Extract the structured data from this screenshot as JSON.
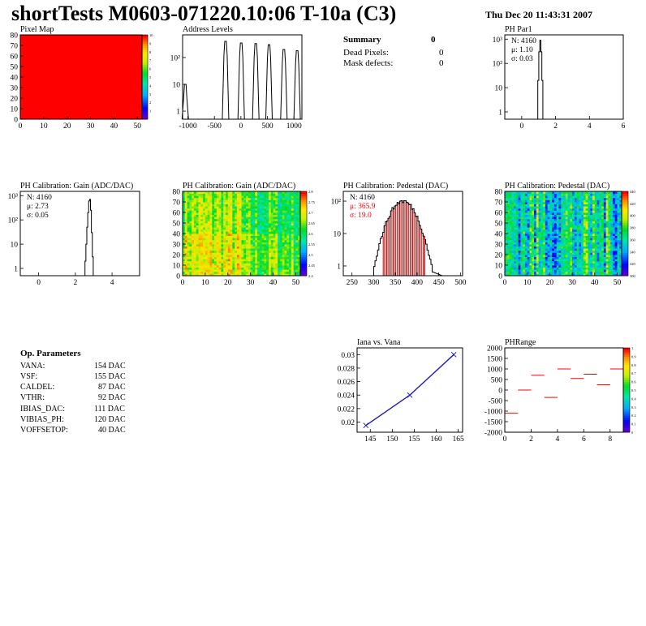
{
  "header": {
    "title": "shortTests M0603-071220.10:06 T-10a (C3)",
    "date": "Thu Dec 20 11:43:31 2007"
  },
  "summary": {
    "title": "Summary",
    "title_value": "0",
    "rows": [
      {
        "label": "Dead Pixels:",
        "value": "0"
      },
      {
        "label": "Mask defects:",
        "value": "0"
      }
    ]
  },
  "op_parameters": {
    "title": "Op. Parameters",
    "rows": [
      {
        "name": "VANA:",
        "value": "154 DAC"
      },
      {
        "name": "VSF:",
        "value": "155 DAC"
      },
      {
        "name": "CALDEL:",
        "value": "87 DAC"
      },
      {
        "name": "VTHR:",
        "value": "92 DAC"
      },
      {
        "name": "IBIAS_DAC:",
        "value": "111 DAC"
      },
      {
        "name": "VIBIAS_PH:",
        "value": "120 DAC"
      },
      {
        "name": "VOFFSETOP:",
        "value": "40 DAC"
      }
    ]
  },
  "colors": {
    "red": "#ff0000",
    "blue": "#2020b0",
    "pedestal_fill": "#a01010"
  },
  "chart_data": [
    {
      "id": "pixel-map",
      "type": "heatmap",
      "title": "Pixel Map",
      "xlim": [
        0,
        52
      ],
      "ylim": [
        0,
        80
      ],
      "xticks": [
        0,
        10,
        20,
        30,
        40,
        50
      ],
      "yticks": [
        0,
        10,
        20,
        30,
        40,
        50,
        60,
        70,
        80
      ],
      "fill_value": 10,
      "z_range": [
        0,
        10
      ],
      "colorbar_ticks": [
        "1",
        "2",
        "3",
        "4",
        "5",
        "6",
        "7",
        "8",
        "9",
        "10"
      ]
    },
    {
      "id": "address-levels",
      "type": "bar",
      "title": "Address Levels",
      "log_y": true,
      "xlim": [
        -1100,
        1150
      ],
      "ylim": [
        0.5,
        700
      ],
      "xticks": [
        -1000,
        -500,
        0,
        500,
        1000
      ],
      "yticks": [
        1,
        10,
        100
      ],
      "peaks": [
        {
          "x": -1050,
          "y": 10
        },
        {
          "x": -290,
          "y": 400
        },
        {
          "x": 5,
          "y": 350
        },
        {
          "x": 280,
          "y": 330
        },
        {
          "x": 530,
          "y": 300
        },
        {
          "x": 810,
          "y": 200
        },
        {
          "x": 1060,
          "y": 180
        }
      ]
    },
    {
      "id": "ph-par1",
      "type": "bar",
      "title": "PH Par1",
      "log_y": true,
      "xlim": [
        -1,
        6
      ],
      "ylim": [
        0.5,
        1500
      ],
      "xticks": [
        0,
        2,
        4,
        6
      ],
      "yticks": [
        1,
        10,
        100,
        1000
      ],
      "stats": {
        "N": "N: 4160",
        "mu": "μ: 1.10",
        "sigma": "σ: 0.03"
      },
      "bins": [
        {
          "x": 0.98,
          "y": 20
        },
        {
          "x": 1.04,
          "y": 300
        },
        {
          "x": 1.1,
          "y": 900
        },
        {
          "x": 1.16,
          "y": 300
        },
        {
          "x": 1.22,
          "y": 20
        }
      ]
    },
    {
      "id": "gain-hist",
      "type": "bar",
      "title": "PH Calibration: Gain (ADC/DAC)",
      "log_y": true,
      "xlim": [
        -1,
        5.5
      ],
      "ylim": [
        0.5,
        1500
      ],
      "xticks": [
        0,
        2,
        4
      ],
      "yticks": [
        1,
        10,
        100,
        1000
      ],
      "stats": {
        "N": "N: 4160",
        "mu": "μ: 2.73",
        "sigma": "σ: 0.05"
      },
      "bins": [
        {
          "x": 2.55,
          "y": 2
        },
        {
          "x": 2.6,
          "y": 10
        },
        {
          "x": 2.65,
          "y": 50
        },
        {
          "x": 2.7,
          "y": 200
        },
        {
          "x": 2.75,
          "y": 600
        },
        {
          "x": 2.8,
          "y": 700
        },
        {
          "x": 2.85,
          "y": 250
        },
        {
          "x": 2.9,
          "y": 30
        },
        {
          "x": 2.95,
          "y": 3
        }
      ]
    },
    {
      "id": "gain-map",
      "type": "heatmap",
      "title": "PH Calibration: Gain (ADC/DAC)",
      "xlim": [
        0,
        52
      ],
      "ylim": [
        0,
        80
      ],
      "xticks": [
        0,
        10,
        20,
        30,
        40,
        50
      ],
      "yticks": [
        0,
        10,
        20,
        30,
        40,
        50,
        60,
        70,
        80
      ],
      "z_range": [
        2.4,
        2.82
      ],
      "colorbar_ticks": [
        "2.4",
        "2.45",
        "2.5",
        "2.55",
        "2.6",
        "2.65",
        "2.7",
        "2.75",
        "2.8"
      ]
    },
    {
      "id": "pedestal-hist",
      "type": "bar",
      "title": "PH Calibration: Pedestal (DAC)",
      "log_y": true,
      "xlim": [
        230,
        505
      ],
      "ylim": [
        0.5,
        200
      ],
      "xticks": [
        250,
        300,
        350,
        400,
        450,
        500
      ],
      "yticks": [
        1,
        10,
        100
      ],
      "stats": {
        "N": "N: 4160",
        "mu": "μ: 365.9",
        "sigma": "σ: 19.0"
      },
      "fit_range": [
        322,
        418
      ],
      "mean": 365.9,
      "sigma": 19.0,
      "peak": 100
    },
    {
      "id": "pedestal-map",
      "type": "heatmap",
      "title": "PH Calibration: Pedestal (DAC)",
      "xlim": [
        0,
        52
      ],
      "ylim": [
        0,
        80
      ],
      "xticks": [
        0,
        10,
        20,
        30,
        40,
        50
      ],
      "yticks": [
        0,
        10,
        20,
        30,
        40,
        50,
        60,
        70,
        80
      ],
      "z_range": [
        300,
        440
      ],
      "colorbar_ticks": [
        "300",
        "320",
        "340",
        "360",
        "380",
        "400",
        "420",
        "440"
      ]
    },
    {
      "id": "iana-vana",
      "type": "line",
      "title": "Iana vs. Vana",
      "xlim": [
        142,
        166
      ],
      "ylim": [
        0.0185,
        0.031
      ],
      "xticks": [
        145,
        150,
        155,
        160,
        165
      ],
      "yticks": [
        0.02,
        0.022,
        0.024,
        0.026,
        0.028,
        0.03
      ],
      "x": [
        144,
        154,
        164
      ],
      "y": [
        0.0195,
        0.024,
        0.03
      ]
    },
    {
      "id": "ph-range",
      "type": "scatter",
      "title": "PHRange",
      "xlim": [
        0,
        9
      ],
      "ylim": [
        -2000,
        2000
      ],
      "xticks": [
        0,
        2,
        4,
        6,
        8
      ],
      "yticks": [
        -2000,
        -1500,
        -1000,
        -500,
        0,
        500,
        1000,
        1500,
        2000
      ],
      "x": [
        0.5,
        1.5,
        2.5,
        3.5,
        4.5,
        5.5,
        6.5,
        7.5,
        8.5
      ],
      "y": [
        -1100,
        0,
        700,
        -350,
        1000,
        550,
        750,
        250,
        1000
      ],
      "colorbar_ticks": [
        "0",
        "0.1",
        "0.2",
        "0.3",
        "0.4",
        "0.5",
        "0.6",
        "0.7",
        "0.8",
        "0.9",
        "1"
      ]
    }
  ]
}
